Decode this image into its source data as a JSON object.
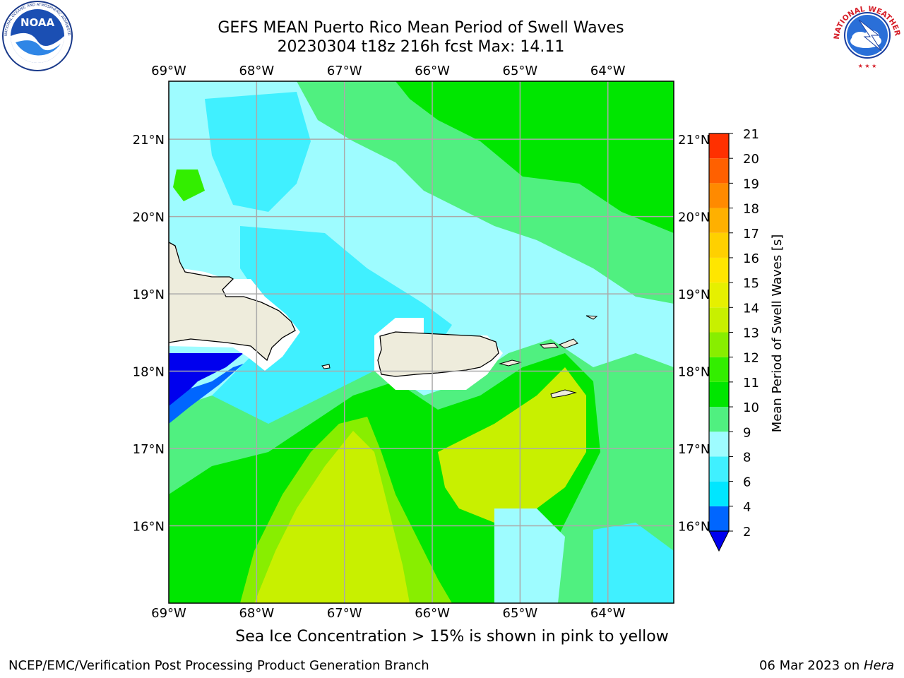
{
  "header": {
    "title_line1": "GEFS MEAN Puerto Rico Mean Period of Swell Waves",
    "title_line2": "20230304 t18z 216h fcst   Max: 14.11"
  },
  "logos": {
    "noaa": {
      "text": "NOAA",
      "ring_text": "NATIONAL OCEANIC AND ATMOSPHERIC ADMINISTRATION · U.S. DEPARTMENT OF COMMERCE"
    },
    "nws": {
      "ring_text": "NATIONAL WEATHER SERVICE"
    }
  },
  "map": {
    "lon_ticks": [
      "69°W",
      "68°W",
      "67°W",
      "66°W",
      "65°W",
      "64°W"
    ],
    "lat_ticks": [
      "21°N",
      "20°N",
      "19°N",
      "18°N",
      "17°N",
      "16°N"
    ],
    "lon_values": [
      -69,
      -68,
      -67,
      -66,
      -65,
      -64
    ],
    "lat_values": [
      21,
      20,
      19,
      18,
      17,
      16
    ],
    "extent": {
      "lon_min": -69.0,
      "lon_max": -63.25,
      "lat_min": 15.0,
      "lat_max": 21.75
    },
    "gridlines": true
  },
  "colorbar": {
    "label": "Mean Period of Swell Waves [s]",
    "levels": [
      "2",
      "4",
      "6",
      "8",
      "9",
      "10",
      "11",
      "12",
      "13",
      "14",
      "15",
      "16",
      "17",
      "18",
      "19",
      "20",
      "21"
    ],
    "colors": [
      "#0066ff",
      "#00e6ff",
      "#40f0ff",
      "#9efcff",
      "#50f080",
      "#00e600",
      "#33ee00",
      "#88ee00",
      "#c8f000",
      "#e6f000",
      "#ffe600",
      "#ffd000",
      "#ffb000",
      "#ff8a00",
      "#ff6000",
      "#ff3000",
      "#ff0000"
    ],
    "extend_min_color": "#0000ee"
  },
  "palette": {
    "land": "#eeecdc",
    "deep_blue": "#0000ee",
    "blue": "#0066ff",
    "cyan": "#40f0ff",
    "light_cyan": "#9efcff",
    "light_green": "#50f080",
    "green": "#00e600",
    "bright_green": "#33ee00",
    "lime": "#88ee00",
    "yellow_green": "#c8f000",
    "yellow": "#e6f000"
  },
  "caption": "Sea Ice Concentration > 15% is shown in pink to yellow",
  "footer": {
    "left": "NCEP/EMC/Verification Post Processing Product Generation Branch",
    "right_prefix": "06 Mar 2023 on ",
    "right_host": "Hera"
  }
}
